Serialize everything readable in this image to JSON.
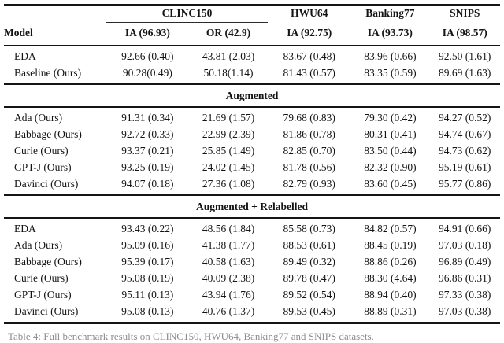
{
  "table": {
    "group_headers": [
      {
        "label": ""
      },
      {
        "label": "CLINC150"
      },
      {
        "label": "HWU64"
      },
      {
        "label": "Banking77"
      },
      {
        "label": "SNIPS"
      }
    ],
    "col_headers": [
      "Model",
      "IA (96.93)",
      "OR (42.9)",
      "IA (92.75)",
      "IA (93.73)",
      "IA (98.57)"
    ],
    "sections": [
      {
        "title": null,
        "rows": [
          {
            "model": "EDA",
            "values": [
              "92.66 (0.40)",
              "43.81 (2.03)",
              "83.67 (0.48)",
              "83.96 (0.66)",
              "92.50 (1.61)"
            ]
          },
          {
            "model": "Baseline (Ours)",
            "values": [
              "90.28(0.49)",
              "50.18(1.14)",
              "81.43 (0.57)",
              "83.35 (0.59)",
              "89.69 (1.63)"
            ]
          }
        ]
      },
      {
        "title": "Augmented",
        "rows": [
          {
            "model": "Ada (Ours)",
            "values": [
              "91.31 (0.34)",
              "21.69 (1.57)",
              "79.68 (0.83)",
              "79.30 (0.42)",
              "94.27 (0.52)"
            ]
          },
          {
            "model": "Babbage (Ours)",
            "values": [
              "92.72 (0.33)",
              "22.99 (2.39)",
              "81.86 (0.78)",
              "80.31 (0.41)",
              "94.74 (0.67)"
            ]
          },
          {
            "model": "Curie (Ours)",
            "values": [
              "93.37 (0.21)",
              "25.85 (1.49)",
              "82.85 (0.70)",
              "83.50 (0.44)",
              "94.73 (0.62)"
            ]
          },
          {
            "model": "GPT-J (Ours)",
            "values": [
              "93.25 (0.19)",
              "24.02 (1.45)",
              "81.78 (0.56)",
              "82.32 (0.90)",
              "95.19 (0.61)"
            ]
          },
          {
            "model": "Davinci (Ours)",
            "values": [
              "94.07 (0.18)",
              "27.36 (1.08)",
              "82.79 (0.93)",
              "83.60 (0.45)",
              "95.77 (0.86)"
            ]
          }
        ]
      },
      {
        "title": "Augmented + Relabelled",
        "rows": [
          {
            "model": "EDA",
            "values": [
              "93.43 (0.22)",
              "48.56 (1.84)",
              "85.58 (0.73)",
              "84.82 (0.57)",
              "94.91 (0.66)"
            ]
          },
          {
            "model": "Ada (Ours)",
            "values": [
              "95.09 (0.16)",
              "41.38 (1.77)",
              "88.53 (0.61)",
              "88.45 (0.19)",
              "97.03 (0.18)"
            ]
          },
          {
            "model": "Babbage (Ours)",
            "values": [
              "95.39 (0.17)",
              "40.58 (1.63)",
              "89.49 (0.32)",
              "88.86 (0.26)",
              "96.89 (0.49)"
            ]
          },
          {
            "model": "Curie (Ours)",
            "values": [
              "95.08 (0.19)",
              "40.09 (2.38)",
              "89.78 (0.47)",
              "88.30 (4.64)",
              "96.86 (0.31)"
            ]
          },
          {
            "model": "GPT-J (Ours)",
            "values": [
              "95.11 (0.13)",
              "43.94 (1.76)",
              "89.52 (0.54)",
              "88.94 (0.40)",
              "97.33 (0.38)"
            ]
          },
          {
            "model": "Davinci (Ours)",
            "values": [
              "95.08 (0.13)",
              "40.76 (1.37)",
              "89.53 (0.45)",
              "88.89 (0.31)",
              "97.03 (0.38)"
            ]
          }
        ]
      }
    ]
  },
  "caption_fragment": "Table 4: Full benchmark results on CLINC150, HWU64, Banking77 and SNIPS datasets.",
  "colors": {
    "background": "#ffffff",
    "text": "#141414",
    "rule": "#151515",
    "caption": "#8d8d8d"
  }
}
